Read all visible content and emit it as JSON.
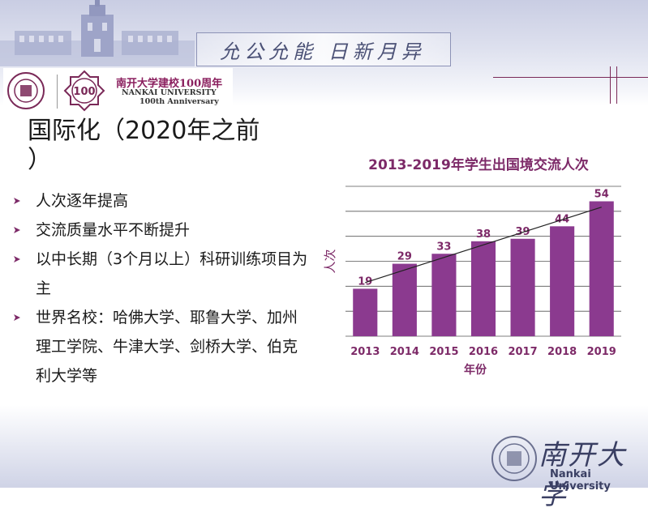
{
  "header": {
    "motto": "允公允能 日新月异",
    "anniversary_cn": "南开大学建校100周年",
    "anniversary_en_1": "NANKAI UNIVERSITY",
    "anniversary_en_2": "100th Anniversary",
    "emblem_text": "100"
  },
  "slide": {
    "title_line1": "国际化（2020年之前",
    "title_line2": "）",
    "bullets": [
      {
        "line1": "人次逐年提高",
        "line2": "",
        "line3": ""
      },
      {
        "line1": "交流质量水平不断提升",
        "line2": "",
        "line3": ""
      },
      {
        "line1": "以中长期（3个月以上）科研训练项目为",
        "line2": "主",
        "line3": ""
      },
      {
        "line1": "世界名校：哈佛大学、耶鲁大学、加州",
        "line2": "理工学院、牛津大学、剑桥大学、伯克",
        "line3": "利大学等"
      }
    ]
  },
  "footer": {
    "name_cn": "南开大学",
    "name_en": "Nankai University"
  },
  "colors": {
    "bar": "#8b3a8f",
    "accent": "#7d2a68",
    "grid": "#555555"
  },
  "chart_data": {
    "type": "bar",
    "title": "2013-2019年学生出国境交流人次",
    "xlabel": "年份",
    "ylabel": "人次",
    "categories": [
      "2013",
      "2014",
      "2015",
      "2016",
      "2017",
      "2018",
      "2019"
    ],
    "values": [
      19,
      29,
      33,
      38,
      39,
      44,
      54
    ],
    "ylim": [
      0,
      60
    ],
    "grid": true,
    "trendline": true
  }
}
